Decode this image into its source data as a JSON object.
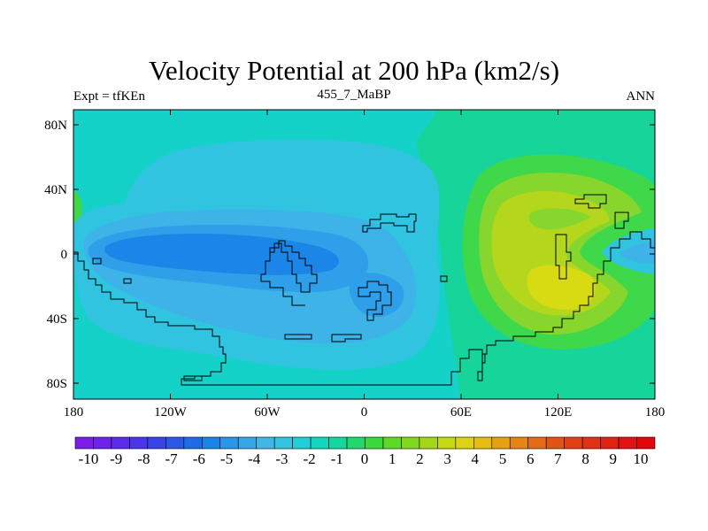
{
  "title": "Velocity Potential at 200 hPa (km2/s)",
  "left_string": "Expt = tfKEn",
  "center_string": "455_7_MaBP",
  "right_string": "ANN",
  "colors": {
    "neg4": "#1c86e8",
    "neg3": "#2f9fea",
    "neg2": "#3db3e8",
    "neg1": "#30c4e0",
    "zero": "#14d2c8",
    "pos1": "#16d49a",
    "pos2": "#3fd84a",
    "pos3": "#86d62e",
    "pos4": "#b4d61c",
    "pos5": "#d8da12"
  },
  "chart_data": {
    "type": "heatmap",
    "title": "Velocity Potential at 200 hPa (km2/s)",
    "x_ticks": [
      "180",
      "120W",
      "60W",
      "0",
      "60E",
      "120E",
      "180"
    ],
    "y_ticks": [
      "80N",
      "40N",
      "0",
      "40S",
      "80S"
    ],
    "xlim": [
      -180,
      180
    ],
    "ylim": [
      -90,
      90
    ],
    "colorbar": {
      "levels": [
        "-10",
        "-9",
        "-8",
        "-7",
        "-6",
        "-5",
        "-4",
        "-3",
        "-2",
        "-1",
        "0",
        "1",
        "2",
        "3",
        "4",
        "5",
        "6",
        "7",
        "8",
        "9",
        "10"
      ],
      "colors": [
        "#7a1ee8",
        "#6c24e8",
        "#5c2ce8",
        "#4a36e8",
        "#3844e6",
        "#2c58e6",
        "#1c6ce8",
        "#1a84e8",
        "#2897ea",
        "#35a8ea",
        "#3fb8e8",
        "#34c4e2",
        "#22cfd6",
        "#14d6bf",
        "#16d69c",
        "#22d86c",
        "#3ad93c",
        "#5cda24",
        "#82d81e",
        "#a4d61a",
        "#c4d816",
        "#dcd314",
        "#e4bc14",
        "#e6a014",
        "#e68414",
        "#e46a14",
        "#e05414",
        "#e04214",
        "#e03214",
        "#e02214",
        "#e01414",
        "#e00808"
      ]
    },
    "fields": [
      {
        "level": 0,
        "desc": "background zero contour"
      },
      {
        "level": -1,
        "desc": "western hemisphere negative region"
      },
      {
        "level": -2,
        "desc": "inner negative region"
      },
      {
        "level": -3,
        "desc": "inner negative core"
      },
      {
        "level": -4,
        "desc": "pacific minimum"
      },
      {
        "level": 1,
        "desc": "positive region east"
      },
      {
        "level": 2,
        "desc": "positive region"
      },
      {
        "level": 3,
        "desc": "positive region"
      },
      {
        "level": 4,
        "desc": "positive core"
      },
      {
        "level": 5,
        "desc": "maximum over maritime region"
      }
    ]
  }
}
